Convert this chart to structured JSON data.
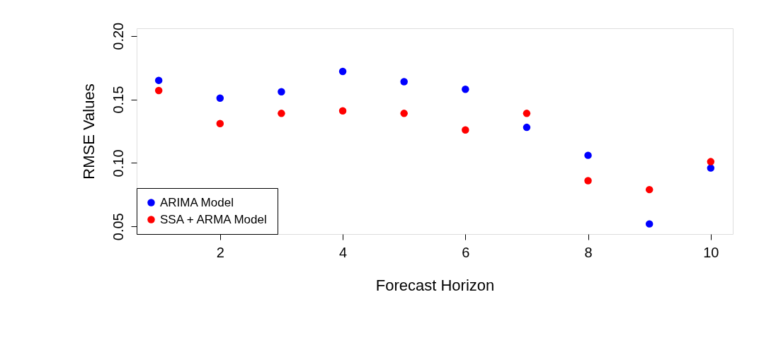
{
  "chart_data": {
    "type": "scatter",
    "xlabel": "Forecast Horizon",
    "ylabel": "RMSE Values",
    "x": [
      1,
      2,
      3,
      4,
      5,
      6,
      7,
      8,
      9,
      10
    ],
    "series": [
      {
        "name": "ARIMA Model",
        "color": "#0000ff",
        "values": [
          0.165,
          0.151,
          0.156,
          0.172,
          0.164,
          0.158,
          0.128,
          0.106,
          0.052,
          0.096
        ]
      },
      {
        "name": "SSA + ARMA Model",
        "color": "#ff0000",
        "values": [
          0.157,
          0.131,
          0.139,
          0.141,
          0.139,
          0.126,
          0.139,
          0.086,
          0.079,
          0.101
        ]
      }
    ],
    "xlim": [
      0.64,
      10.36
    ],
    "xticks": [
      2,
      4,
      6,
      8,
      10
    ],
    "ylim": [
      0.044,
      0.206
    ],
    "yticks": [
      {
        "value": 0.05,
        "label": "0.05"
      },
      {
        "value": 0.1,
        "label": "0.10"
      },
      {
        "value": 0.15,
        "label": "0.15"
      },
      {
        "value": 0.2,
        "label": "0.20"
      }
    ],
    "grid": false,
    "legend": "bottom left",
    "marker": "circle"
  }
}
